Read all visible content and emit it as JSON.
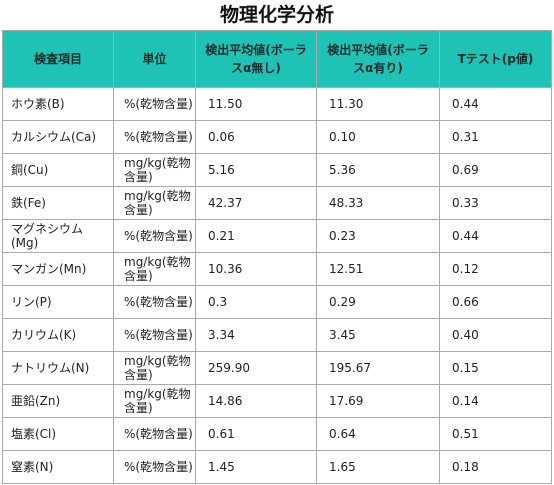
{
  "title": "物理化学分析",
  "table": {
    "headers": [
      "検査項目",
      "単位",
      "検出平均値(ボーラスα無し)",
      "検出平均値(ボーラスα有り)",
      "Tテスト(p値)"
    ],
    "rows": [
      {
        "item": "ホウ素(B)",
        "unit": "%(乾物含量)",
        "without": "11.50",
        "with": "11.30",
        "p": "0.44"
      },
      {
        "item": "カルシウム(Ca)",
        "unit": "%(乾物含量)",
        "without": "0.06",
        "with": "0.10",
        "p": "0.31"
      },
      {
        "item": "銅(Cu)",
        "unit": "mg/kg(乾物含量)",
        "without": "5.16",
        "with": "5.36",
        "p": "0.69"
      },
      {
        "item": "鉄(Fe)",
        "unit": "mg/kg(乾物含量)",
        "without": "42.37",
        "with": "48.33",
        "p": "0.33"
      },
      {
        "item": "マグネシウム(Mg)",
        "unit": "%(乾物含量)",
        "without": "0.21",
        "with": "0.23",
        "p": "0.44"
      },
      {
        "item": "マンガン(Mn)",
        "unit": "mg/kg(乾物含量)",
        "without": "10.36",
        "with": "12.51",
        "p": "0.12"
      },
      {
        "item": "リン(P)",
        "unit": "%(乾物含量)",
        "without": "0.3",
        "with": "0.29",
        "p": "0.66"
      },
      {
        "item": "カリウム(K)",
        "unit": "%(乾物含量)",
        "without": "3.34",
        "with": "3.45",
        "p": "0.40"
      },
      {
        "item": "ナトリウム(N)",
        "unit": "mg/kg(乾物含量)",
        "without": "259.90",
        "with": "195.67",
        "p": "0.15"
      },
      {
        "item": "亜鉛(Zn)",
        "unit": "mg/kg(乾物含量)",
        "without": "14.86",
        "with": "17.69",
        "p": "0.14"
      },
      {
        "item": "塩素(Cl)",
        "unit": "%(乾物含量)",
        "without": "0.61",
        "with": "0.64",
        "p": "0.51"
      },
      {
        "item": "窒素(N)",
        "unit": "%(乾物含量)",
        "without": "1.45",
        "with": "1.65",
        "p": "0.18"
      }
    ]
  },
  "colors": {
    "header_bg": "#1fc3b6",
    "border": "#a9a9a9"
  }
}
